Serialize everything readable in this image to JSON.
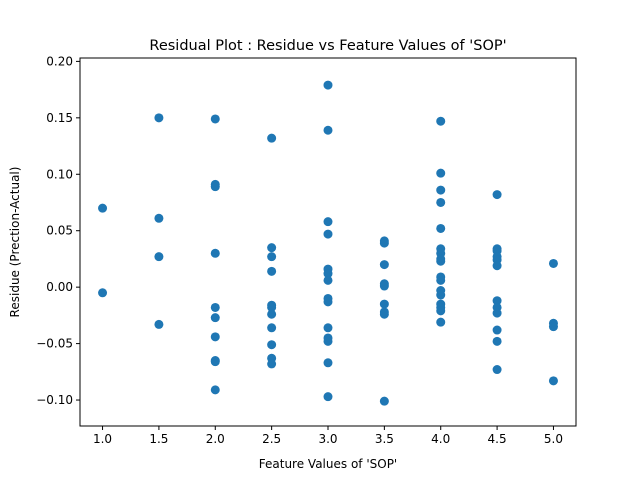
{
  "chart_data": {
    "type": "scatter",
    "title": "Residual Plot : Residue vs Feature Values of 'SOP'",
    "xlabel": "Feature Values of 'SOP'",
    "ylabel": "Residue (Prection-Actual)",
    "xlim": [
      0.8,
      5.2
    ],
    "ylim": [
      -0.123,
      0.203
    ],
    "xticks": [
      1.0,
      1.5,
      2.0,
      2.5,
      3.0,
      3.5,
      4.0,
      4.5,
      5.0
    ],
    "xtick_labels": [
      "1.0",
      "1.5",
      "2.0",
      "2.5",
      "3.0",
      "3.5",
      "4.0",
      "4.5",
      "5.0"
    ],
    "yticks": [
      -0.1,
      -0.05,
      0.0,
      0.05,
      0.1,
      0.15,
      0.2
    ],
    "ytick_labels": [
      "−0.10",
      "−0.05",
      "0.00",
      "0.05",
      "0.10",
      "0.15",
      "0.20"
    ],
    "grid": false,
    "marker_color": "#1f77b4",
    "points": [
      [
        1.0,
        0.07
      ],
      [
        1.0,
        -0.005
      ],
      [
        1.5,
        0.15
      ],
      [
        1.5,
        0.061
      ],
      [
        1.5,
        0.027
      ],
      [
        1.5,
        -0.033
      ],
      [
        2.0,
        0.149
      ],
      [
        2.0,
        0.091
      ],
      [
        2.0,
        0.089
      ],
      [
        2.0,
        0.03
      ],
      [
        2.0,
        -0.018
      ],
      [
        2.0,
        -0.027
      ],
      [
        2.0,
        -0.044
      ],
      [
        2.0,
        -0.065
      ],
      [
        2.0,
        -0.066
      ],
      [
        2.0,
        -0.091
      ],
      [
        2.5,
        0.132
      ],
      [
        2.5,
        0.035
      ],
      [
        2.5,
        0.027
      ],
      [
        2.5,
        0.014
      ],
      [
        2.5,
        -0.016
      ],
      [
        2.5,
        -0.018
      ],
      [
        2.5,
        -0.024
      ],
      [
        2.5,
        -0.036
      ],
      [
        2.5,
        -0.051
      ],
      [
        2.5,
        -0.063
      ],
      [
        2.5,
        -0.068
      ],
      [
        3.0,
        0.179
      ],
      [
        3.0,
        0.139
      ],
      [
        3.0,
        0.058
      ],
      [
        3.0,
        0.047
      ],
      [
        3.0,
        0.016
      ],
      [
        3.0,
        0.012
      ],
      [
        3.0,
        0.006
      ],
      [
        3.0,
        -0.01
      ],
      [
        3.0,
        -0.013
      ],
      [
        3.0,
        -0.036
      ],
      [
        3.0,
        -0.045
      ],
      [
        3.0,
        -0.048
      ],
      [
        3.0,
        -0.067
      ],
      [
        3.0,
        -0.097
      ],
      [
        3.5,
        0.041
      ],
      [
        3.5,
        0.039
      ],
      [
        3.5,
        0.02
      ],
      [
        3.5,
        0.003
      ],
      [
        3.5,
        0.001
      ],
      [
        3.5,
        -0.015
      ],
      [
        3.5,
        -0.022
      ],
      [
        3.5,
        -0.024
      ],
      [
        3.5,
        -0.101
      ],
      [
        4.0,
        0.147
      ],
      [
        4.0,
        0.101
      ],
      [
        4.0,
        0.086
      ],
      [
        4.0,
        0.075
      ],
      [
        4.0,
        0.052
      ],
      [
        4.0,
        0.034
      ],
      [
        4.0,
        0.03
      ],
      [
        4.0,
        0.025
      ],
      [
        4.0,
        0.023
      ],
      [
        4.0,
        0.009
      ],
      [
        4.0,
        0.006
      ],
      [
        4.0,
        -0.003
      ],
      [
        4.0,
        -0.007
      ],
      [
        4.0,
        -0.015
      ],
      [
        4.0,
        -0.018
      ],
      [
        4.0,
        -0.021
      ],
      [
        4.0,
        -0.031
      ],
      [
        4.5,
        0.082
      ],
      [
        4.5,
        0.034
      ],
      [
        4.5,
        0.032
      ],
      [
        4.5,
        0.027
      ],
      [
        4.5,
        0.024
      ],
      [
        4.5,
        0.019
      ],
      [
        4.5,
        -0.012
      ],
      [
        4.5,
        -0.018
      ],
      [
        4.5,
        -0.023
      ],
      [
        4.5,
        -0.038
      ],
      [
        4.5,
        -0.048
      ],
      [
        4.5,
        -0.073
      ],
      [
        5.0,
        0.021
      ],
      [
        5.0,
        -0.032
      ],
      [
        5.0,
        -0.035
      ],
      [
        5.0,
        -0.083
      ]
    ]
  }
}
